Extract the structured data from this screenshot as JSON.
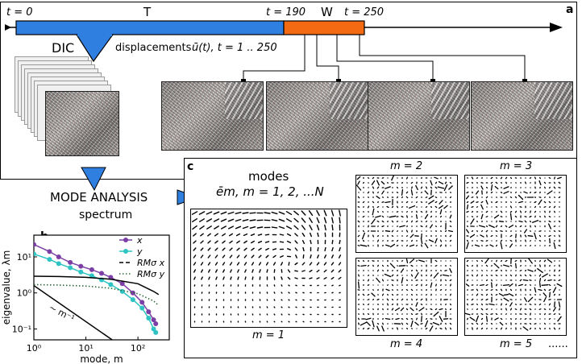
{
  "timeline": {
    "t0": "t = 0",
    "T": "T",
    "t190": "t = 190",
    "W": "W",
    "t250": "t = 250",
    "colors": {
      "train": "#2f7fe0",
      "window": "#f36a12"
    }
  },
  "panel_a": {
    "letter": "a",
    "dic": "DIC",
    "displacements": "displacements",
    "u_expr": "ū(t),  t = 1 .. 250"
  },
  "mode_analysis": {
    "title": "MODE ANALYSIS",
    "sub": "spectrum"
  },
  "panel_c": {
    "letter": "c",
    "modes_title": "modes",
    "modes_expr": "ēm, m = 1, 2, ...N",
    "labels": [
      "m = 1",
      "m = 2",
      "m = 3",
      "m = 4",
      "m = 5"
    ],
    "ellipsis": "......"
  },
  "chart_data": {
    "type": "line",
    "letter": "b",
    "xlabel": "mode, m",
    "ylabel": "eigenvalue, λm",
    "xscale": "log",
    "yscale": "log",
    "xlim": [
      1,
      400
    ],
    "ylim": [
      0.05,
      40
    ],
    "x_ticks": [
      "10⁰",
      "10¹",
      "10²"
    ],
    "y_ticks": [
      "10⁻¹",
      "10⁰",
      "10¹"
    ],
    "legend": [
      "x",
      "y",
      "RMσ x",
      "RMσ y"
    ],
    "annotation": "~ m⁻¹",
    "series": [
      {
        "name": "x",
        "color": "#7b3fa6",
        "style": "solid-markers",
        "x": [
          1,
          2,
          3,
          5,
          8,
          13,
          20,
          30,
          50,
          80,
          120,
          160,
          200,
          220
        ],
        "y": [
          22,
          14,
          10,
          7,
          5.5,
          4.4,
          3.5,
          2.7,
          1.8,
          1.0,
          0.55,
          0.3,
          0.18,
          0.14
        ]
      },
      {
        "name": "y",
        "color": "#2fc3c3",
        "style": "solid-markers",
        "x": [
          1,
          2,
          3,
          5,
          8,
          13,
          20,
          30,
          50,
          80,
          120,
          160,
          200,
          220
        ],
        "y": [
          12,
          8.5,
          6.5,
          5.0,
          3.8,
          3.0,
          2.3,
          1.7,
          1.1,
          0.65,
          0.38,
          0.2,
          0.1,
          0.08
        ]
      },
      {
        "name": "RMσ x",
        "color": "#000000",
        "style": "solid",
        "x": [
          1,
          3,
          10,
          30,
          100,
          200,
          250
        ],
        "y": [
          2.9,
          2.85,
          2.7,
          2.4,
          1.8,
          1.1,
          0.9
        ]
      },
      {
        "name": "RMσ y",
        "color": "#2a6a3a",
        "style": "dotted",
        "x": [
          1,
          3,
          10,
          30,
          100,
          200,
          250
        ],
        "y": [
          1.7,
          1.65,
          1.55,
          1.35,
          0.95,
          0.6,
          0.45
        ]
      },
      {
        "name": "",
        "color": "#000000",
        "style": "solid",
        "x": [
          1,
          400
        ],
        "y": [
          1.6,
          0.004
        ]
      }
    ]
  }
}
